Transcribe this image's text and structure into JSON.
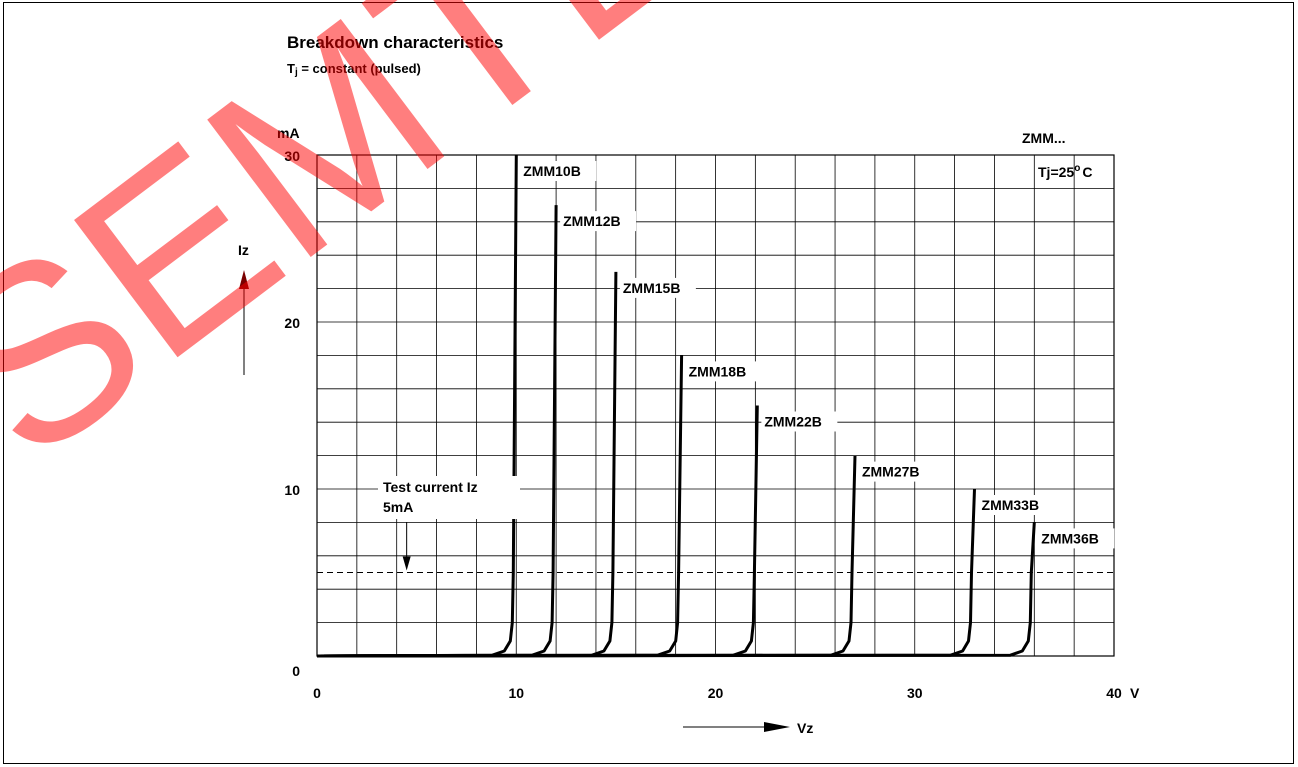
{
  "chart_data": {
    "type": "line",
    "title": "Breakdown characteristics",
    "subtitle": "Tj = constant (pulsed)",
    "subtitle_parts": {
      "a": "T",
      "b": "j",
      "c": " = constant (pulsed)"
    },
    "family_label": "ZMM...",
    "temp_label": {
      "a": "Tj=25",
      "b": "o",
      "c": "C"
    },
    "ylabel": "Iz",
    "yunit": "mA",
    "xlabel": "Vz",
    "xunit": "V",
    "xlim": [
      0,
      40
    ],
    "ylim": [
      0,
      30
    ],
    "x_ticks": [
      "0",
      "10",
      "20",
      "30",
      "40"
    ],
    "y_ticks": [
      "0",
      "10",
      "20",
      "30"
    ],
    "grid": true,
    "test_current": {
      "value": 5,
      "label_line1": "Test current Iz",
      "label_line2": "5mA",
      "x": 4.5
    },
    "watermark": "SEMTECH",
    "series": [
      {
        "name": "ZMM10B",
        "vz": 10.0,
        "imax": 30
      },
      {
        "name": "ZMM12B",
        "vz": 12.0,
        "imax": 27
      },
      {
        "name": "ZMM15B",
        "vz": 15.0,
        "imax": 23
      },
      {
        "name": "ZMM18B",
        "vz": 18.3,
        "imax": 18
      },
      {
        "name": "ZMM22B",
        "vz": 22.1,
        "imax": 15
      },
      {
        "name": "ZMM27B",
        "vz": 27.0,
        "imax": 12
      },
      {
        "name": "ZMM33B",
        "vz": 33.0,
        "imax": 10
      },
      {
        "name": "ZMM36B",
        "vz": 36.0,
        "imax": 8
      }
    ]
  }
}
